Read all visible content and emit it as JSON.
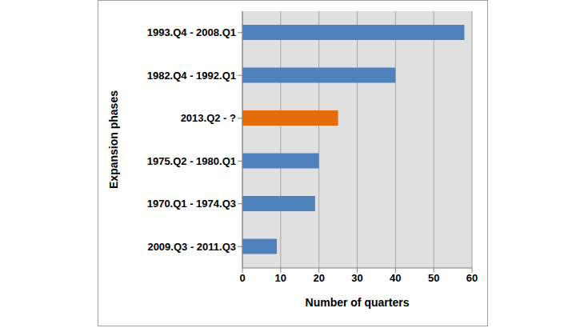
{
  "chart_data": {
    "type": "bar",
    "orientation": "horizontal",
    "categories": [
      "1993.Q4 - 2008.Q1",
      "1982.Q4 - 1992.Q1",
      "2013.Q2 - ?",
      "1975.Q2 - 1980.Q1",
      "1970.Q1 - 1974.Q3",
      "2009.Q3 - 2011.Q3"
    ],
    "values": [
      58,
      40,
      25,
      20,
      19,
      9
    ],
    "colors": [
      "#4f81bd",
      "#4f81bd",
      "#e46c0a",
      "#4f81bd",
      "#4f81bd",
      "#4f81bd"
    ],
    "xlabel": "Number of quarters",
    "ylabel": "Expansion phases",
    "xlim": [
      0,
      60
    ],
    "xticks": [
      0,
      10,
      20,
      30,
      40,
      50,
      60
    ],
    "grid": true
  }
}
